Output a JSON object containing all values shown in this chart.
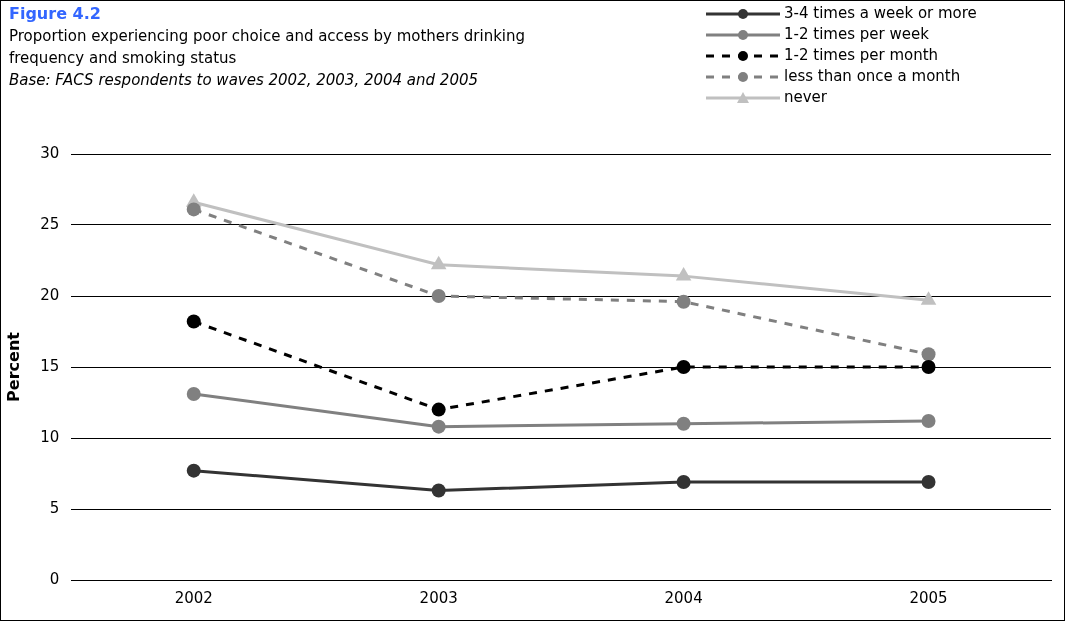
{
  "chart_data": {
    "type": "line",
    "title": "Figure 4.2",
    "subtitle": "Proportion experiencing poor choice and access by mothers drinking frequency and smoking status",
    "annotations": [
      "Base: FACS respondents to waves 2002, 2003, 2004 and 2005"
    ],
    "ylabel": "Percent",
    "categories": [
      "2002",
      "2003",
      "2004",
      "2005"
    ],
    "ylim": [
      0,
      30
    ],
    "yticks": [
      0,
      5,
      10,
      15,
      20,
      25,
      30
    ],
    "grid": "y",
    "legend": "top right",
    "series": [
      {
        "name": "3-4 times a week or more",
        "color": "#333333",
        "values": [
          7.7,
          6.3,
          6.9,
          6.9
        ],
        "marker": "circle",
        "line_style": "solid"
      },
      {
        "name": "1-2 times per week",
        "color": "#808080",
        "values": [
          13.1,
          10.8,
          11.0,
          11.2
        ],
        "marker": "circle",
        "line_style": "solid"
      },
      {
        "name": "1-2 times per month",
        "color": "#000000",
        "values": [
          18.2,
          12.0,
          15.0,
          15.0
        ],
        "marker": "circle",
        "line_style": "dashed"
      },
      {
        "name": "less than once a month",
        "color": "#808080",
        "values": [
          26.1,
          20.0,
          19.6,
          15.9
        ],
        "marker": "circle",
        "line_style": "dashed"
      },
      {
        "name": "never",
        "color": "#c0c0c0",
        "values": [
          26.6,
          22.2,
          21.4,
          19.7
        ],
        "marker": "triangle",
        "line_style": "solid"
      }
    ]
  }
}
